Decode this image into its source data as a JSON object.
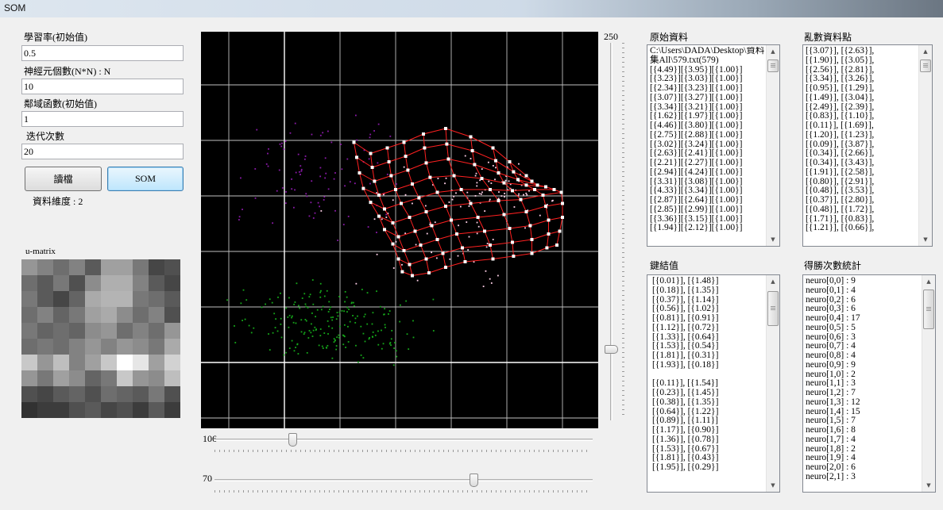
{
  "window": {
    "title": "SOM"
  },
  "controls": {
    "learning_rate": {
      "label": "學習率(初始值)",
      "value": "0.5"
    },
    "neurons": {
      "label": "神經元個數(N*N) : N",
      "value": "10"
    },
    "neighborhood": {
      "label": "鄰域函數(初始值)",
      "value": "1"
    },
    "iterations": {
      "label": "迭代次數",
      "value": "20"
    },
    "read_button": "讀檔",
    "som_button": "SOM",
    "dimension_label": "資料維度 : 2"
  },
  "umatrix": {
    "label": "u-matrix",
    "cells": [
      [
        150,
        130,
        110,
        130,
        90,
        160,
        160,
        120,
        70,
        80
      ],
      [
        110,
        90,
        120,
        80,
        140,
        175,
        175,
        130,
        90,
        70
      ],
      [
        120,
        90,
        70,
        100,
        170,
        180,
        180,
        120,
        110,
        90
      ],
      [
        110,
        130,
        100,
        120,
        160,
        170,
        140,
        110,
        130,
        80
      ],
      [
        120,
        100,
        110,
        100,
        140,
        150,
        110,
        130,
        110,
        150
      ],
      [
        110,
        120,
        110,
        130,
        150,
        130,
        150,
        140,
        120,
        170
      ],
      [
        200,
        150,
        190,
        130,
        160,
        200,
        255,
        230,
        160,
        210
      ],
      [
        150,
        120,
        160,
        140,
        100,
        120,
        200,
        150,
        140,
        190
      ],
      [
        80,
        70,
        90,
        100,
        80,
        110,
        100,
        90,
        120,
        80
      ],
      [
        50,
        60,
        60,
        80,
        90,
        70,
        80,
        60,
        90,
        60
      ]
    ]
  },
  "sliders": {
    "vertical": {
      "value": "250",
      "fraction": 0.82
    },
    "horizontal_1": {
      "value": "106",
      "fraction": 0.2
    },
    "horizontal_2": {
      "value": "70",
      "fraction": 0.69
    }
  },
  "lists": {
    "raw_data": {
      "label": "原始資料",
      "rows": [
        "C:\\Users\\DADA\\Desktop\\資料",
        "集All\\579.txt(579)",
        "[{4.49}][{3.95}][{1.00}]",
        "[{3.23}][{3.03}][{1.00}]",
        "[{2.34}][{3.23}][{1.00}]",
        "[{3.07}][{3.27}][{1.00}]",
        "[{3.34}][{3.21}][{1.00}]",
        "[{1.62}][{1.97}][{1.00}]",
        "[{4.46}][{3.80}][{1.00}]",
        "[{2.75}][{2.88}][{1.00}]",
        "[{3.02}][{3.24}][{1.00}]",
        "[{2.63}][{2.41}][{1.00}]",
        "[{2.21}][{2.27}][{1.00}]",
        "[{2.94}][{4.24}][{1.00}]",
        "[{3.31}][{3.08}][{1.00}]",
        "[{4.33}][{3.34}][{1.00}]",
        "[{2.87}][{2.64}][{1.00}]",
        "[{2.85}][{2.99}][{1.00}]",
        "[{3.36}][{3.15}][{1.00}]",
        "[{1.94}][{2.12}][{1.00}]"
      ]
    },
    "shuffled": {
      "label": "亂數資料點",
      "rows": [
        "[{3.07}], [{2.63}],",
        "[{1.90}], [{3.05}],",
        "[{2.56}], [{2.81}],",
        "[{3.34}], [{3.26}],",
        "[{0.95}], [{1.29}],",
        "[{1.49}], [{3.04}],",
        "[{2.49}], [{2.39}],",
        "[{0.83}], [{1.10}],",
        "[{0.11}], [{1.69}],",
        "[{1.20}], [{1.23}],",
        "[{0.09}], [{3.87}],",
        "[{0.34}], [{2.66}],",
        "[{0.34}], [{3.43}],",
        "[{1.91}], [{2.58}],",
        "[{0.80}], [{2.91}],",
        "[{0.48}], [{3.53}],",
        "[{0.37}], [{2.80}],",
        "[{0.48}], [{1.72}],",
        "[{1.71}], [{0.83}],",
        "[{1.21}], [{0.66}],"
      ]
    },
    "weights": {
      "label": "鍵結值",
      "rows": [
        "[{0.01}], [{1.48}]",
        "[{0.18}], [{1.35}]",
        "[{0.37}], [{1.14}]",
        "[{0.56}], [{1.02}]",
        "[{0.81}], [{0.91}]",
        "[{1.12}], [{0.72}]",
        "[{1.33}], [{0.64}]",
        "[{1.53}], [{0.54}]",
        "[{1.81}], [{0.31}]",
        "[{1.93}], [{0.18}]",
        "",
        "[{0.11}], [{1.54}]",
        "[{0.23}], [{1.45}]",
        "[{0.38}], [{1.35}]",
        "[{0.64}], [{1.22}]",
        "[{0.89}], [{1.11}]",
        "[{1.17}], [{0.90}]",
        "[{1.36}], [{0.78}]",
        "[{1.53}], [{0.67}]",
        "[{1.81}], [{0.43}]",
        "[{1.95}], [{0.29}]"
      ]
    },
    "win_counts": {
      "label": "得勝次數統計",
      "rows": [
        "neuro[0,0] : 9",
        "neuro[0,1] : 4",
        "neuro[0,2] : 6",
        "neuro[0,3] : 6",
        "neuro[0,4] : 17",
        "neuro[0,5] : 5",
        "neuro[0,6] : 3",
        "neuro[0,7] : 4",
        "neuro[0,8] : 4",
        "neuro[0,9] : 9",
        "neuro[1,0] : 2",
        "neuro[1,1] : 3",
        "neuro[1,2] : 7",
        "neuro[1,3] : 12",
        "neuro[1,4] : 15",
        "neuro[1,5] : 7",
        "neuro[1,6] : 8",
        "neuro[1,7] : 4",
        "neuro[1,8] : 2",
        "neuro[1,9] : 4",
        "neuro[2,0] : 6",
        "neuro[2,1] : 3"
      ]
    }
  },
  "plot": {
    "colors": {
      "background": "#000000",
      "grid": "#ffffff",
      "net": "#ff2020",
      "node": "#ffffff",
      "class_1": "#ffd0e8",
      "class_2": "#8a1aa8",
      "class_3": "#15a81a"
    },
    "neuron_grid": [
      [
        [
          1.75,
          4.15
        ],
        [
          1.8,
          3.88
        ],
        [
          1.85,
          3.6
        ],
        [
          1.92,
          3.32
        ],
        [
          2.05,
          3.07
        ],
        [
          2.2,
          2.82
        ],
        [
          2.3,
          2.58
        ],
        [
          2.45,
          2.32
        ],
        [
          2.55,
          2.05
        ],
        [
          2.62,
          1.82
        ]
      ],
      [
        [
          2.05,
          3.95
        ],
        [
          2.08,
          3.7
        ],
        [
          2.12,
          3.45
        ],
        [
          2.2,
          3.2
        ],
        [
          2.3,
          2.95
        ],
        [
          2.45,
          2.7
        ],
        [
          2.55,
          2.45
        ],
        [
          2.65,
          2.2
        ],
        [
          2.75,
          1.95
        ],
        [
          2.8,
          1.75
        ]
      ],
      [
        [
          2.35,
          4.05
        ],
        [
          2.38,
          3.8
        ],
        [
          2.42,
          3.55
        ],
        [
          2.5,
          3.3
        ],
        [
          2.6,
          3.05
        ],
        [
          2.75,
          2.8
        ],
        [
          2.85,
          2.55
        ],
        [
          2.95,
          2.3
        ],
        [
          3.05,
          2.05
        ],
        [
          3.1,
          1.8
        ]
      ],
      [
        [
          2.65,
          4.15
        ],
        [
          2.68,
          3.9
        ],
        [
          2.72,
          3.65
        ],
        [
          2.8,
          3.4
        ],
        [
          2.92,
          3.15
        ],
        [
          3.05,
          2.9
        ],
        [
          3.15,
          2.65
        ],
        [
          3.25,
          2.4
        ],
        [
          3.35,
          2.15
        ],
        [
          3.4,
          1.9
        ]
      ],
      [
        [
          3.0,
          4.3
        ],
        [
          3.02,
          4.05
        ],
        [
          3.05,
          3.78
        ],
        [
          3.12,
          3.52
        ],
        [
          3.25,
          3.25
        ],
        [
          3.4,
          3.0
        ],
        [
          3.5,
          2.75
        ],
        [
          3.6,
          2.5
        ],
        [
          3.7,
          2.25
        ],
        [
          3.75,
          2.0
        ]
      ],
      [
        [
          3.4,
          4.4
        ],
        [
          3.42,
          4.12
        ],
        [
          3.45,
          3.85
        ],
        [
          3.55,
          3.55
        ],
        [
          3.68,
          3.3
        ],
        [
          3.85,
          3.05
        ],
        [
          3.98,
          2.8
        ],
        [
          4.1,
          2.55
        ],
        [
          4.2,
          2.3
        ],
        [
          4.25,
          2.05
        ]
      ],
      [
        [
          3.85,
          4.25
        ],
        [
          3.88,
          4.0
        ],
        [
          3.92,
          3.75
        ],
        [
          4.05,
          3.5
        ],
        [
          4.2,
          3.3
        ],
        [
          4.35,
          3.1
        ],
        [
          4.45,
          2.85
        ],
        [
          4.55,
          2.6
        ],
        [
          4.6,
          2.35
        ],
        [
          4.62,
          2.1
        ]
      ],
      [
        [
          4.25,
          4.05
        ],
        [
          4.3,
          3.82
        ],
        [
          4.35,
          3.6
        ],
        [
          4.45,
          3.42
        ],
        [
          4.6,
          3.28
        ],
        [
          4.75,
          3.12
        ],
        [
          4.85,
          2.9
        ],
        [
          4.92,
          2.65
        ],
        [
          4.95,
          2.4
        ],
        [
          4.95,
          2.15
        ]
      ],
      [
        [
          4.55,
          3.8
        ],
        [
          4.62,
          3.62
        ],
        [
          4.7,
          3.48
        ],
        [
          4.85,
          3.38
        ],
        [
          5.0,
          3.3
        ],
        [
          5.15,
          3.2
        ],
        [
          5.2,
          3.0
        ],
        [
          5.25,
          2.75
        ],
        [
          5.25,
          2.5
        ],
        [
          5.22,
          2.25
        ]
      ],
      [
        [
          4.85,
          3.55
        ],
        [
          4.95,
          3.45
        ],
        [
          5.05,
          3.38
        ],
        [
          5.2,
          3.35
        ],
        [
          5.35,
          3.3
        ],
        [
          5.48,
          3.25
        ],
        [
          5.5,
          3.05
        ],
        [
          5.5,
          2.8
        ],
        [
          5.45,
          2.55
        ],
        [
          5.4,
          2.3
        ]
      ]
    ]
  }
}
